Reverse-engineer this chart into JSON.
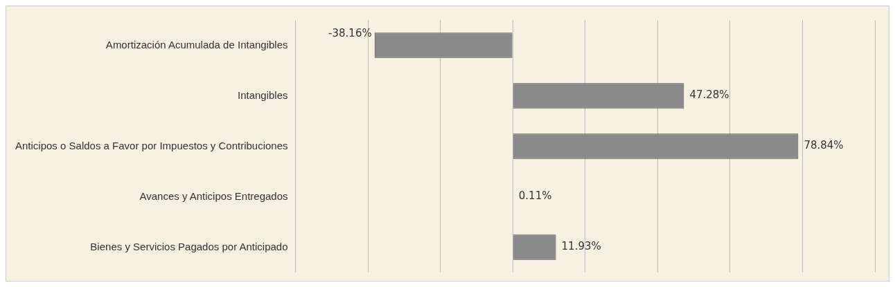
{
  "chart_data": {
    "type": "bar",
    "orientation": "horizontal",
    "categories": [
      "Amortización Acumulada de Intangibles",
      "Intangibles",
      "Anticipos o Saldos a Favor por Impuestos y Contribuciones",
      "Avances y Anticipos Entregados",
      "Bienes y Servicios Pagados por Anticipado"
    ],
    "values": [
      -38.16,
      47.28,
      78.84,
      0.11,
      11.93
    ],
    "value_labels": [
      "-38.16%",
      "47.28%",
      "78.84%",
      "0.11%",
      "11.93%"
    ],
    "color": "#8a8a8a",
    "xlim": [
      -60,
      100
    ],
    "xticks": [
      {
        "value": -60,
        "label": null
      },
      {
        "value": -40,
        "label": null
      },
      {
        "value": -20,
        "label": null
      },
      {
        "value": 0,
        "label": null
      },
      {
        "value": 20,
        "label": null
      },
      {
        "value": 40,
        "label": null
      },
      {
        "value": 60,
        "label": null
      },
      {
        "value": 80,
        "label": null
      },
      {
        "value": 100,
        "label": null
      }
    ],
    "grid": "x",
    "tick_labels": "y",
    "legend": false
  }
}
